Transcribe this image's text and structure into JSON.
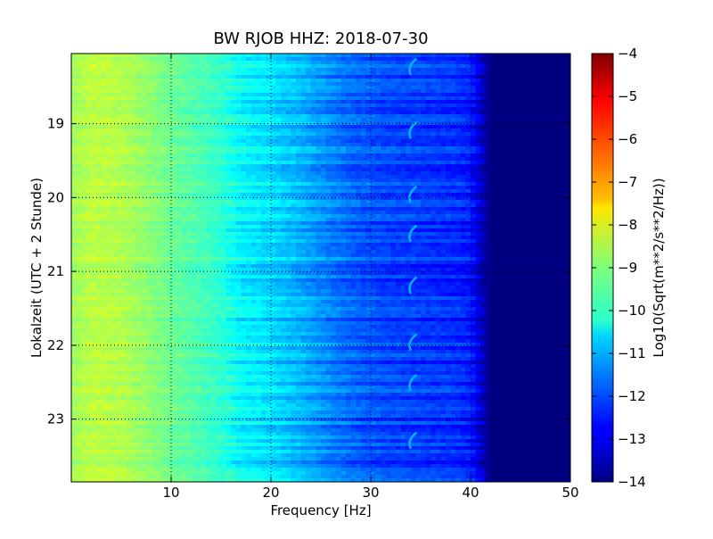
{
  "chart_data": {
    "type": "heatmap",
    "title": "BW RJOB HHZ: 2018-07-30",
    "xlabel": "Frequency [Hz]",
    "ylabel": "Lokalzeit (UTC + 2 Stunde)",
    "colorbar_label": "Log10(Sqrt(m**2/s**2/Hz))",
    "xlim": [
      0,
      50
    ],
    "ylim": [
      18.05,
      23.85
    ],
    "y_axis_inverted": true,
    "x_ticks": [
      10,
      20,
      30,
      40,
      50
    ],
    "x_tick_labels": [
      "10",
      "20",
      "30",
      "40",
      "50"
    ],
    "y_ticks": [
      19,
      20,
      21,
      22,
      23
    ],
    "y_tick_labels": [
      "19",
      "20",
      "21",
      "22",
      "23"
    ],
    "color_range": [
      -14,
      -4
    ],
    "colorbar_ticks": [
      -4,
      -5,
      -6,
      -7,
      -8,
      -9,
      -10,
      -11,
      -12,
      -13,
      -14
    ],
    "colorbar_tick_labels": [
      "−4",
      "−5",
      "−6",
      "−7",
      "−8",
      "−9",
      "−10",
      "−11",
      "−12",
      "−13",
      "−14"
    ],
    "colormap": "jet",
    "grid": "dotted",
    "frequency_profile": {
      "frequency_hz": [
        0,
        2,
        5,
        8,
        10,
        12,
        15,
        17,
        20,
        23,
        26,
        29,
        32,
        35,
        38,
        40,
        42,
        45,
        50
      ],
      "log10_amplitude": [
        -8.7,
        -8.4,
        -8.5,
        -8.9,
        -9.2,
        -9.4,
        -9.8,
        -10.3,
        -10.6,
        -11.0,
        -11.5,
        -11.9,
        -12.1,
        -12.2,
        -12.3,
        -12.5,
        -14.0,
        -14.0,
        -14.0
      ]
    },
    "recurring_feature": {
      "frequency_hz": 34,
      "log10_amplitude": -11.0,
      "times_hour": [
        18.22,
        19.08,
        19.95,
        20.48,
        21.18,
        21.95,
        22.5,
        23.28
      ]
    }
  },
  "colors": {
    "background": "#ffffff",
    "grid": "#000000"
  }
}
